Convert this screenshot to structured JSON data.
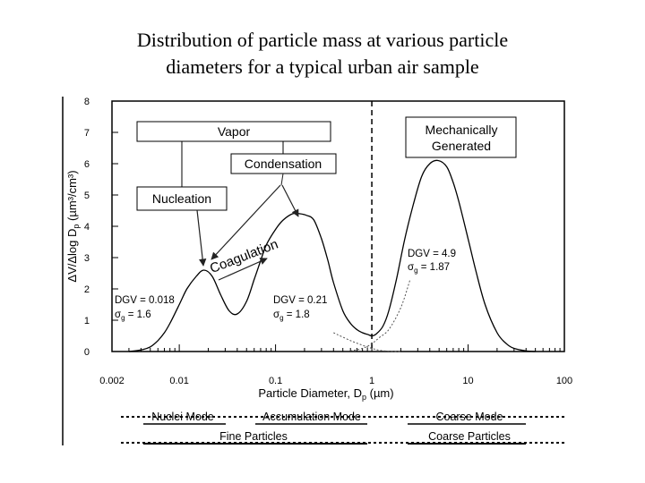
{
  "slide": {
    "title_line1": "Distribution of particle mass at various particle",
    "title_line2": "diameters for a typical urban air sample"
  },
  "chart_data": {
    "type": "line",
    "x_scale": "log",
    "xlim": [
      0.002,
      100
    ],
    "ylim": [
      0,
      8
    ],
    "xlabel": "Particle Diameter, D",
    "xlabel_sub": "p",
    "xlabel_unit": " (µm)",
    "ylabel": "ΔV/Δlog D",
    "ylabel_sub": "p",
    "ylabel_unit": " (µm³/cm³)",
    "x_ticks": [
      0.002,
      0.01,
      0.1,
      1,
      10,
      100
    ],
    "x_tick_labels": [
      "0.002",
      "0.01",
      "0.1",
      "1",
      "10",
      "100"
    ],
    "y_ticks": [
      0,
      1,
      2,
      3,
      4,
      5,
      6,
      7,
      8
    ],
    "y_tick_labels": [
      "0",
      "1",
      "2",
      "3",
      "4",
      "5",
      "6",
      "7",
      "8"
    ],
    "divider_x": 1,
    "series": [
      {
        "x": [
          0.003,
          0.004,
          0.005,
          0.006,
          0.007,
          0.008,
          0.01,
          0.012,
          0.015,
          0.018,
          0.022,
          0.027,
          0.033,
          0.04,
          0.05,
          0.06,
          0.07,
          0.08,
          0.1,
          0.12,
          0.15,
          0.18,
          0.21,
          0.25,
          0.3,
          0.35,
          0.4,
          0.5,
          0.6,
          0.7,
          0.8,
          0.9,
          1.0,
          1.1,
          1.3,
          1.5,
          1.8,
          2.2,
          2.7,
          3.3,
          4.0,
          4.9,
          6.0,
          7.0,
          8.0,
          10,
          12,
          15,
          20,
          25,
          30,
          40,
          50
        ],
        "y": [
          0,
          0.05,
          0.15,
          0.35,
          0.6,
          0.9,
          1.5,
          2.0,
          2.4,
          2.6,
          2.4,
          1.8,
          1.3,
          1.2,
          1.6,
          2.3,
          2.9,
          3.4,
          3.9,
          4.2,
          4.4,
          4.4,
          4.35,
          4.2,
          3.6,
          2.9,
          2.2,
          1.3,
          0.9,
          0.7,
          0.6,
          0.55,
          0.5,
          0.55,
          0.8,
          1.3,
          2.3,
          3.6,
          4.7,
          5.6,
          6.0,
          6.1,
          5.9,
          5.4,
          4.8,
          3.6,
          2.6,
          1.5,
          0.6,
          0.25,
          0.1,
          0.02,
          0
        ]
      }
    ],
    "tails": [
      {
        "x": [
          0.4,
          0.6,
          0.8,
          1.0,
          1.2,
          1.5,
          2.0
        ],
        "y": [
          0.6,
          0.35,
          0.2,
          0.1,
          0.04,
          0.01,
          0
        ]
      },
      {
        "x": [
          0.6,
          0.8,
          1.0,
          1.2,
          1.5,
          2.0,
          2.5
        ],
        "y": [
          0.02,
          0.1,
          0.25,
          0.45,
          0.7,
          1.4,
          2.3
        ]
      }
    ],
    "annotations": {
      "vapor": "Vapor",
      "condensation": "Condensation",
      "nucleation": "Nucleation",
      "coagulation": "Coagulation",
      "mech_line1": "Mechanically",
      "mech_line2": "Generated",
      "mode1_dgv": "DGV = 0.018",
      "mode1_sg": " = 1.6",
      "mode2_dgv": "DGV = 0.21",
      "mode2_sg": " = 1.8",
      "mode3_dgv": "DGV = 4.9",
      "mode3_sg": " = 1.87",
      "sigma": "σ",
      "sigma_sub": "g"
    },
    "modes": {
      "nuclei": "Nuclei Mode",
      "accumulation": "Accumulation Mode",
      "coarse": "Coarse Mode",
      "fine_particles": "Fine Particles",
      "coarse_particles": "Coarse Particles"
    }
  }
}
